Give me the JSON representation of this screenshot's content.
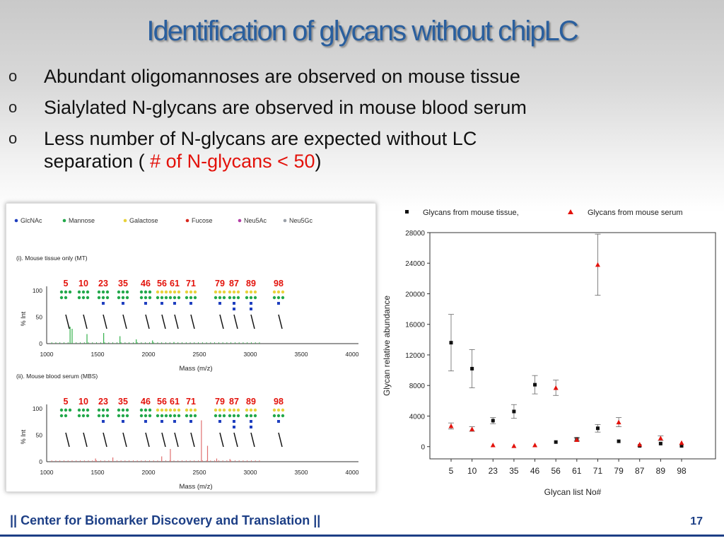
{
  "slide": {
    "title": "Identification of glycans without chipLC",
    "bullet_mark": "o",
    "bullets": [
      "Abundant oligomannoses are observed on mouse tissue",
      "Sialylated N-glycans are observed in mouse blood serum",
      "Less number of N-glycans are expected without LC"
    ],
    "bullet3_line2_pre": "separation  ( ",
    "bullet3_line2_red": "# of N-glycans < 50",
    "bullet3_line2_post": ")",
    "footer": "|| Center for Biomarker Discovery and Translation ||",
    "page_number": "17"
  },
  "spectra": {
    "legend": [
      "GlcNAc",
      "Mannose",
      "Galactose",
      "Fucose",
      "Neu5Ac",
      "Neu5Gc"
    ],
    "legend_colors": [
      "#1f3fbf",
      "#22a84a",
      "#e8d23a",
      "#d8281e",
      "#b43ea6",
      "#9aa0a8"
    ],
    "panels": [
      {
        "label": "(i). Mouse tissue only (MT)",
        "color": "#33b04a"
      },
      {
        "label": "(ii). Mouse blood serum (MBS)",
        "color": "#e07070"
      }
    ],
    "ylabel": "% Int",
    "xlabel": "Mass (m/z)",
    "xticks": [
      "1000",
      "1500",
      "2000",
      "2500",
      "3000",
      "3500",
      "4000"
    ],
    "yticks": [
      "0",
      "50",
      "100"
    ],
    "glycan_ids": [
      "5",
      "10",
      "23",
      "35",
      "46",
      "56",
      "61",
      "71",
      "79",
      "87",
      "89",
      "98"
    ]
  },
  "chart_data": {
    "type": "scatter",
    "categories": [
      "5",
      "10",
      "23",
      "35",
      "46",
      "56",
      "61",
      "71",
      "79",
      "87",
      "89",
      "98"
    ],
    "series": [
      {
        "name": "Glycans from mouse tissue,",
        "marker": "square",
        "color": "#111111",
        "values": [
          13600,
          10200,
          3400,
          4600,
          8100,
          600,
          1000,
          2400,
          700,
          100,
          400,
          100
        ],
        "errors": [
          3700,
          2500,
          400,
          900,
          1200,
          0,
          200,
          500,
          0,
          0,
          0,
          0
        ]
      },
      {
        "name": "Glycans from mouse serum",
        "marker": "triangle",
        "color": "#e3120b",
        "values": [
          2700,
          2300,
          200,
          100,
          200,
          7700,
          900,
          23800,
          3200,
          300,
          1100,
          500
        ],
        "errors": [
          400,
          300,
          0,
          0,
          0,
          1000,
          200,
          4000,
          600,
          0,
          300,
          0
        ]
      }
    ],
    "xlabel": "Glycan list No#",
    "ylabel": "Glycan relative abundance",
    "ylim": [
      -1600,
      28000
    ],
    "yticks": [
      0,
      4000,
      8000,
      12000,
      16000,
      20000,
      24000,
      28000
    ],
    "legend_position": "top"
  }
}
